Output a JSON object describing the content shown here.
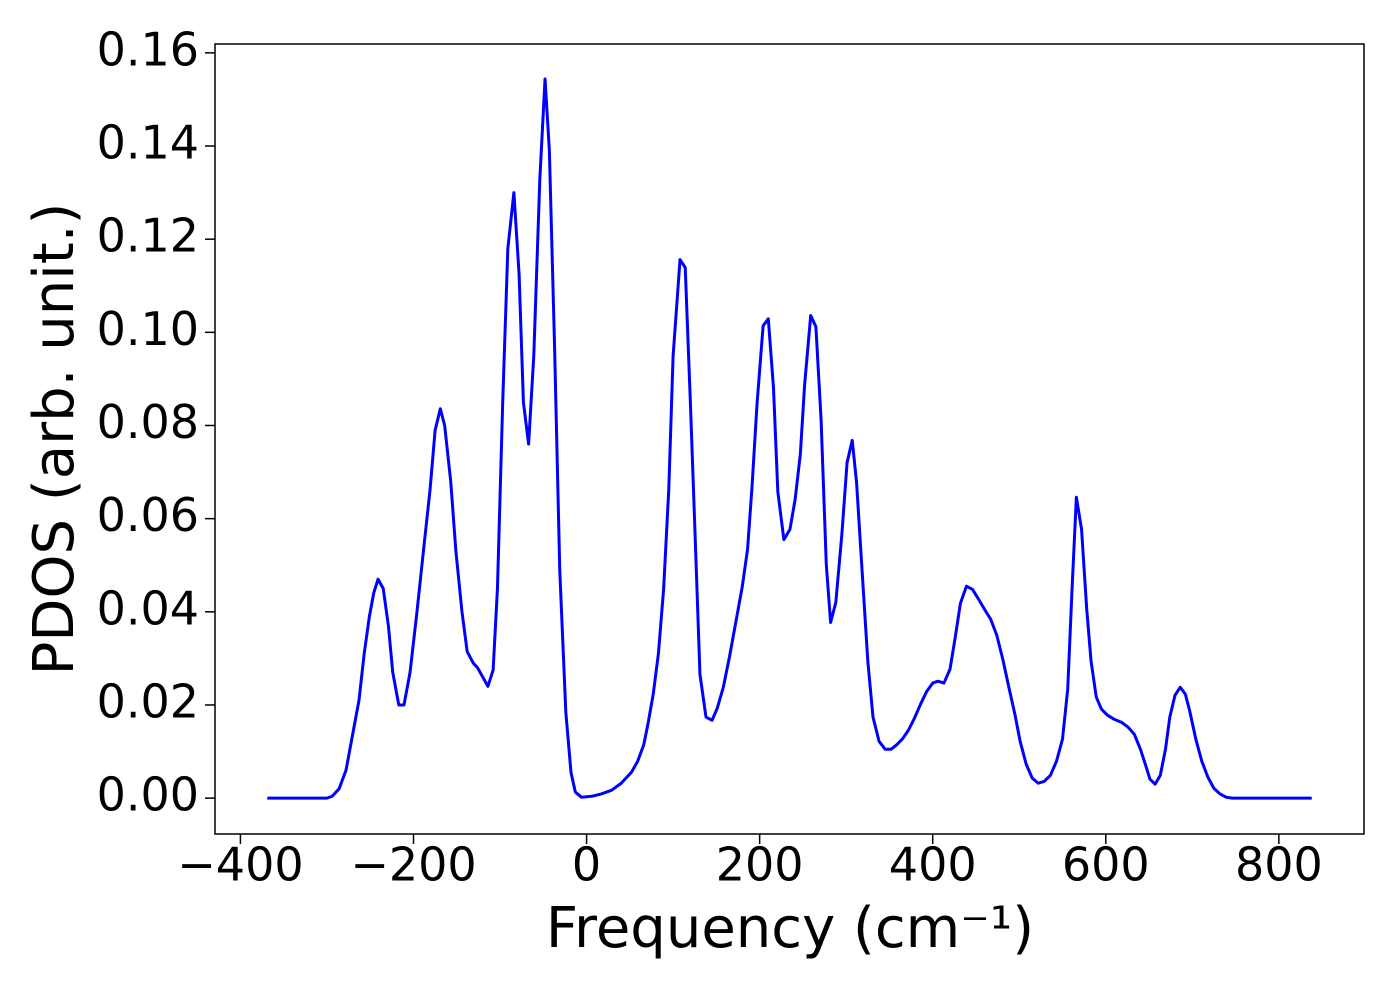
{
  "chart_data": {
    "type": "line",
    "xlabel": "Frequency (cm⁻¹)",
    "ylabel": "PDOS (arb. unit.)",
    "color": "#0000ff",
    "xlim": [
      -429.4,
      898.4
    ],
    "ylim": [
      -0.0077,
      0.1619
    ],
    "xticks": [
      {
        "value": -400,
        "label": "−400"
      },
      {
        "value": -200,
        "label": "−200"
      },
      0,
      200,
      400,
      600,
      800
    ],
    "yticks": [
      {
        "value": 0,
        "label": "0.00"
      },
      {
        "value": 0.02,
        "label": "0.02"
      },
      {
        "value": 0.04,
        "label": "0.04"
      },
      {
        "value": 0.06,
        "label": "0.06"
      },
      {
        "value": 0.08,
        "label": "0.08"
      },
      {
        "value": 0.1,
        "label": "0.10"
      },
      {
        "value": 0.12,
        "label": "0.12"
      },
      {
        "value": 0.14,
        "label": "0.14"
      },
      {
        "value": 0.16,
        "label": "0.16"
      }
    ],
    "x": [
      -369,
      -300,
      -294,
      -286,
      -278,
      -271,
      -263,
      -257,
      -251,
      -246,
      -241,
      -235,
      -229,
      -224,
      -217,
      -211,
      -204,
      -196,
      -188,
      -181,
      -175,
      -169,
      -164,
      -157,
      -151,
      -144,
      -138,
      -131,
      -126,
      -120,
      -114,
      -108,
      -103,
      -97,
      -91,
      -84,
      -78,
      -73,
      -67,
      -61,
      -54,
      -48,
      -43,
      -37,
      -31,
      -24,
      -18,
      -13,
      -6,
      6,
      17,
      29,
      40,
      52,
      59,
      66,
      71,
      77,
      83,
      89,
      95,
      100,
      108,
      114,
      120,
      126,
      131,
      138,
      145,
      151,
      158,
      165,
      172,
      180,
      186,
      191,
      197,
      204,
      210,
      216,
      221,
      228,
      235,
      241,
      247,
      252,
      259,
      265,
      271,
      277,
      282,
      288,
      295,
      301,
      307,
      312,
      319,
      325,
      331,
      338,
      345,
      352,
      358,
      365,
      372,
      379,
      386,
      393,
      400,
      406,
      413,
      420,
      426,
      432,
      439,
      446,
      453,
      460,
      467,
      474,
      481,
      488,
      495,
      501,
      508,
      515,
      522,
      529,
      536,
      543,
      550,
      556,
      561,
      566,
      572,
      578,
      583,
      589,
      595,
      602,
      610,
      618,
      626,
      633,
      640,
      646,
      651,
      657,
      663,
      669,
      674,
      680,
      686,
      692,
      697,
      704,
      711,
      718,
      725,
      732,
      739,
      746,
      838
    ],
    "values": [
      0,
      0,
      0.0004,
      0.002,
      0.006,
      0.013,
      0.021,
      0.031,
      0.039,
      0.044,
      0.047,
      0.045,
      0.037,
      0.027,
      0.02,
      0.02,
      0.027,
      0.04,
      0.054,
      0.066,
      0.079,
      0.0836,
      0.08,
      0.068,
      0.053,
      0.04,
      0.0315,
      0.029,
      0.028,
      0.026,
      0.024,
      0.0275,
      0.045,
      0.0845,
      0.118,
      0.13,
      0.1125,
      0.085,
      0.076,
      0.095,
      0.133,
      0.1544,
      0.139,
      0.097,
      0.049,
      0.0185,
      0.0055,
      0.0013,
      0.0002,
      0.0004,
      0.0009,
      0.0017,
      0.0032,
      0.0056,
      0.0079,
      0.0114,
      0.016,
      0.0223,
      0.031,
      0.0448,
      0.0663,
      0.095,
      0.1156,
      0.1139,
      0.0847,
      0.0534,
      0.0266,
      0.0174,
      0.0167,
      0.0193,
      0.0238,
      0.0302,
      0.0373,
      0.0455,
      0.0534,
      0.0663,
      0.0847,
      0.1014,
      0.1029,
      0.0881,
      0.0658,
      0.0555,
      0.0577,
      0.0641,
      0.0738,
      0.0888,
      0.1036,
      0.1012,
      0.0813,
      0.0502,
      0.0377,
      0.042,
      0.0566,
      0.072,
      0.0768,
      0.0678,
      0.047,
      0.0294,
      0.0174,
      0.0122,
      0.0105,
      0.0105,
      0.0114,
      0.0127,
      0.0146,
      0.0172,
      0.0202,
      0.0229,
      0.0247,
      0.0251,
      0.0247,
      0.0277,
      0.0345,
      0.0418,
      0.0455,
      0.0448,
      0.0427,
      0.0405,
      0.0384,
      0.035,
      0.0298,
      0.0238,
      0.018,
      0.0122,
      0.0073,
      0.0043,
      0.0032,
      0.0036,
      0.0049,
      0.0079,
      0.0127,
      0.0234,
      0.0448,
      0.0646,
      0.0577,
      0.0405,
      0.0294,
      0.0217,
      0.0191,
      0.0178,
      0.0169,
      0.0163,
      0.0152,
      0.0137,
      0.0105,
      0.0071,
      0.0041,
      0.003,
      0.0049,
      0.0105,
      0.0174,
      0.0221,
      0.0238,
      0.0223,
      0.0187,
      0.0127,
      0.0079,
      0.0045,
      0.0021,
      0.0009,
      0.0002,
      0,
      0
    ]
  }
}
